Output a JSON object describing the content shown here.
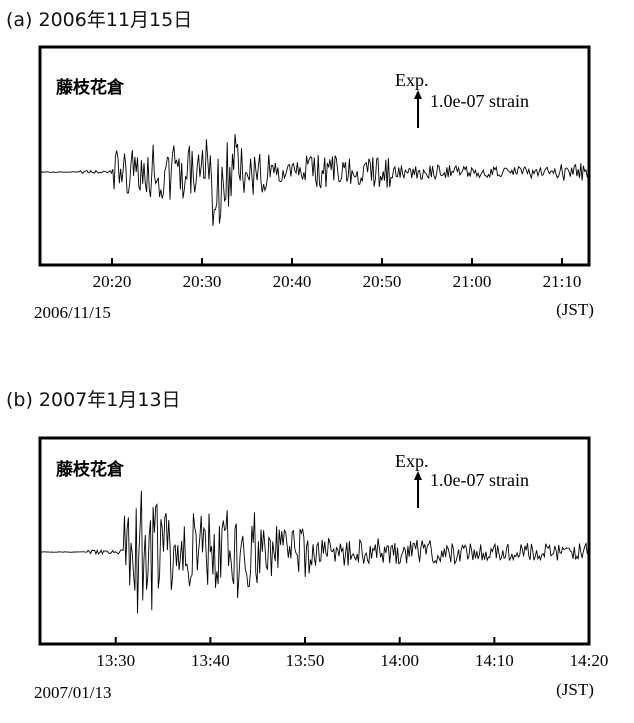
{
  "chart_data": [
    {
      "type": "line",
      "title": "(a) 2006年11月15日",
      "station": "藤枝花倉",
      "scale_label_top": "Exp.",
      "scale_label": "1.0e-07 strain",
      "x_ticks": [
        "20:20",
        "20:30",
        "20:40",
        "20:50",
        "21:00",
        "21:10"
      ],
      "x_unit": "(JST)",
      "date_label": "2006/11/15",
      "x_range": [
        "20:12",
        "21:13"
      ],
      "signal": {
        "onset": "20:18",
        "peak": "20:31",
        "description_free": true
      }
    },
    {
      "type": "line",
      "title": "(b) 2007年1月13日",
      "station": "藤枝花倉",
      "scale_label_top": "Exp.",
      "scale_label": "1.0e-07 strain",
      "x_ticks": [
        "13:30",
        "13:40",
        "13:50",
        "14:00",
        "14:10",
        "14:20"
      ],
      "x_unit": "(JST)",
      "date_label": "2007/01/13",
      "x_range": [
        "13:22",
        "14:20"
      ],
      "signal": {
        "onset": "13:27",
        "peak": "13:32",
        "description_free": true
      }
    }
  ]
}
